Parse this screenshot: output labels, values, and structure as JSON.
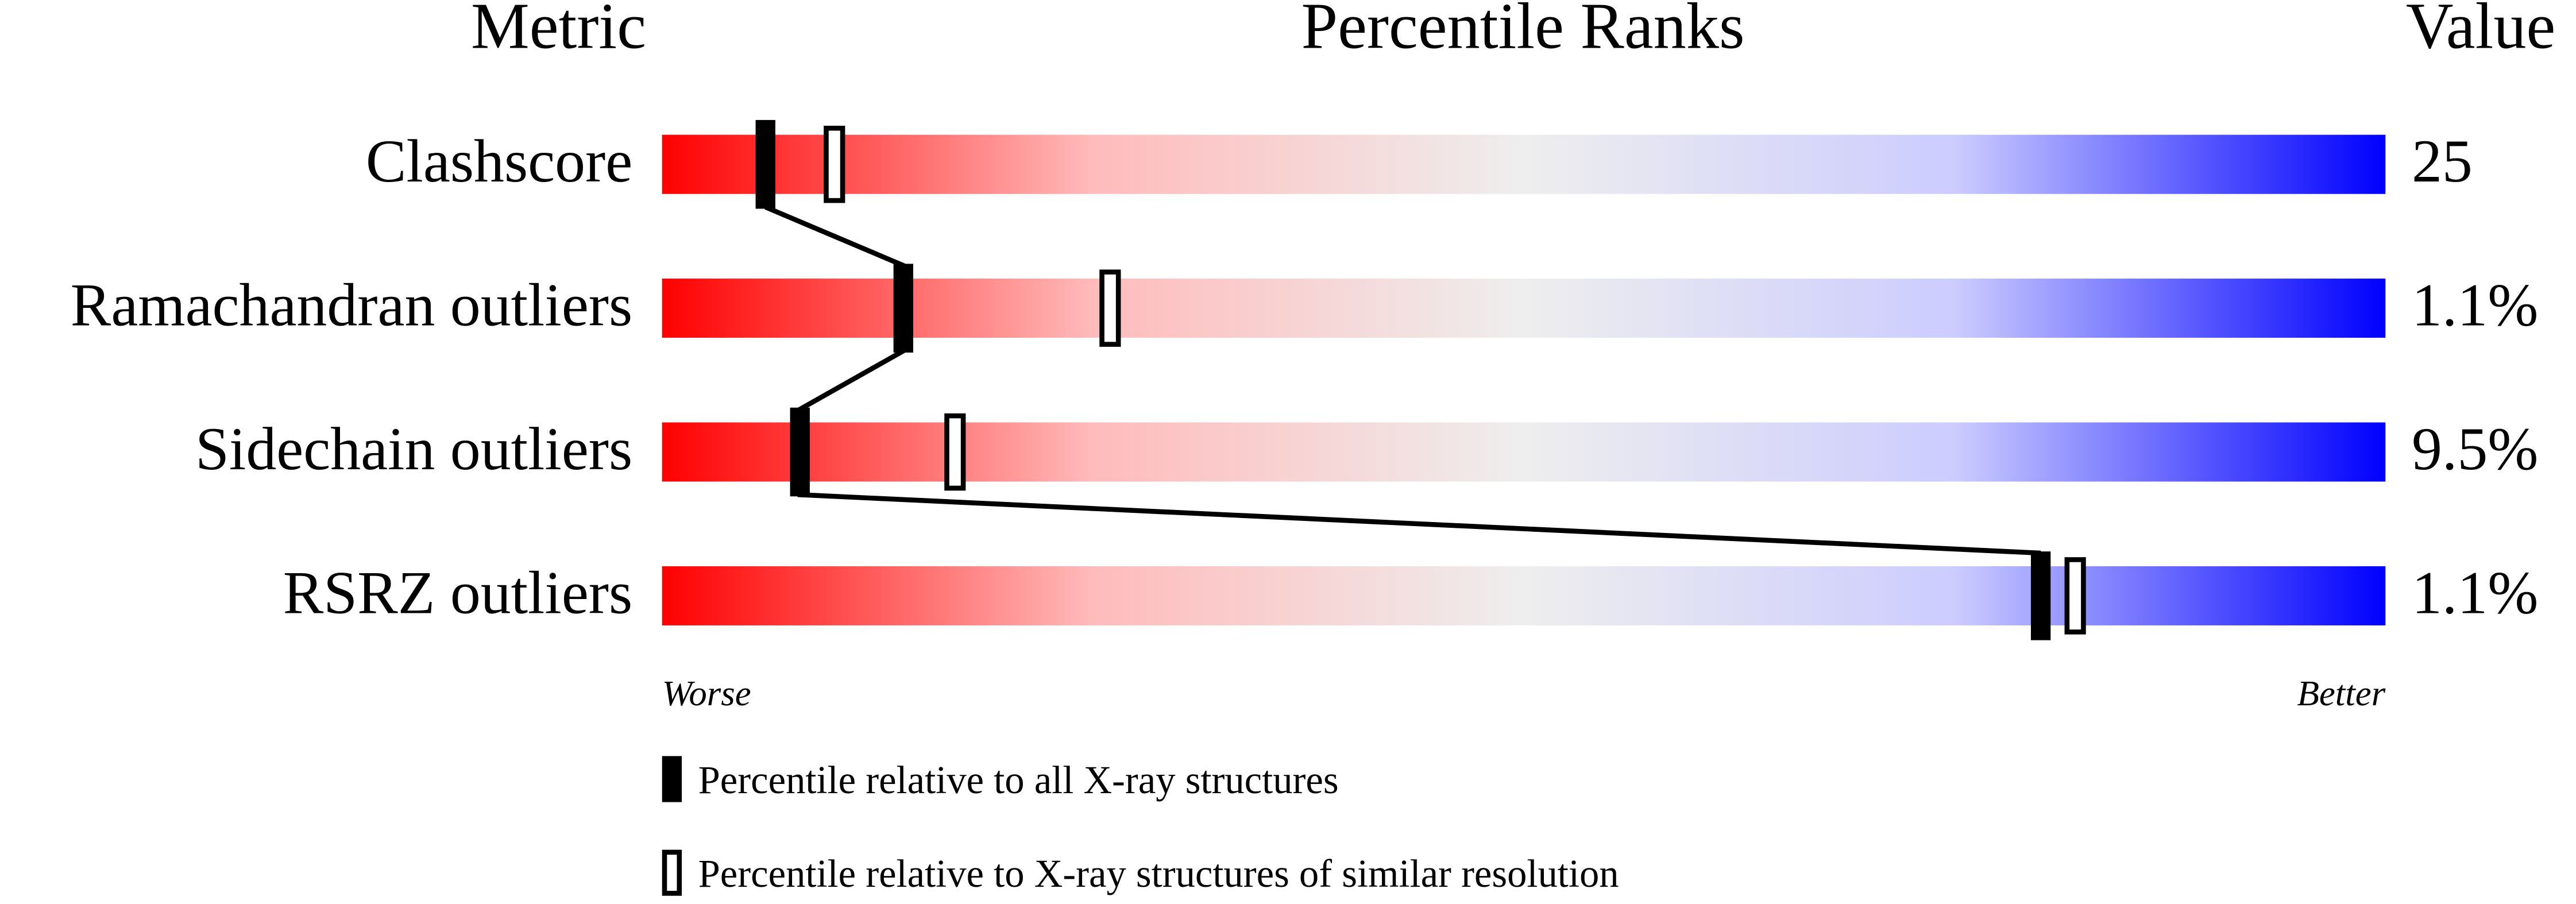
{
  "chart_data": {
    "type": "percentile",
    "title": "Percentile Ranks",
    "metric_header": "Metric",
    "value_header": "Value",
    "categories": [
      "Clashscore",
      "Ramachandran outliers",
      "Sidechain outliers",
      "RSRZ outliers"
    ],
    "series": [
      {
        "name": "Percentile relative to all X-ray structures",
        "color": "#000000",
        "values": [
          6,
          14,
          8,
          80
        ]
      },
      {
        "name": "Percentile relative to X-ray structures of similar resolution",
        "color": "#ffffff",
        "values": [
          10,
          26,
          17,
          82
        ]
      }
    ],
    "xlim": [
      0,
      100
    ],
    "metric_values": [
      25,
      1.1,
      9.5,
      1.1
    ],
    "value_labels": [
      "25",
      "1.1%",
      "9.5%",
      "1.1%"
    ],
    "worse_label": "Worse",
    "better_label": "Better",
    "gradient_colors": [
      "#ff0000",
      "#ffbbbb",
      "#eeeeee",
      "#ccccff",
      "#0000ff"
    ]
  }
}
